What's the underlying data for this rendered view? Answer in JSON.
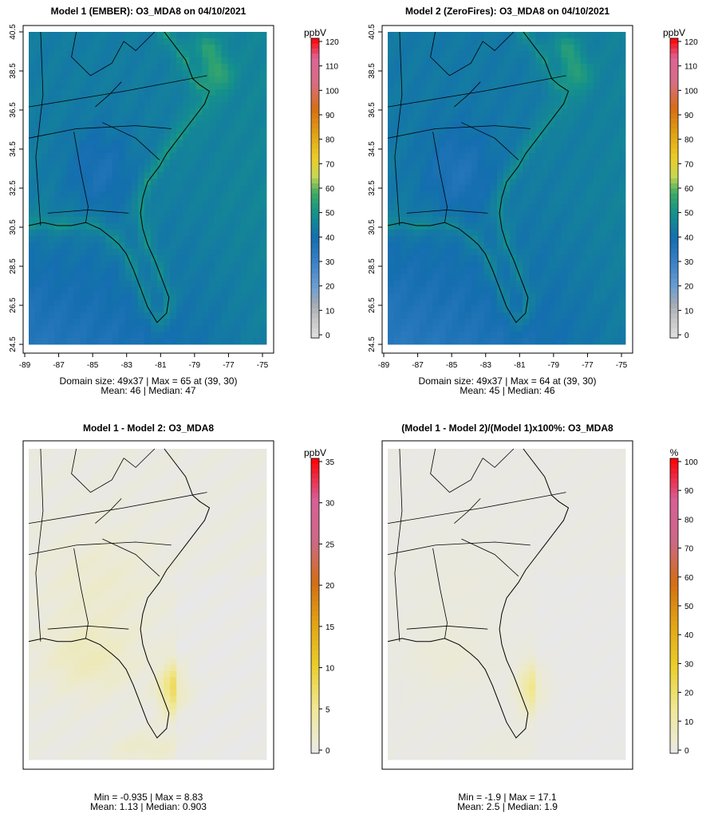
{
  "figure_title": "Four-panel O3_MDA8 comparison, 04/10/2021",
  "chart_data": [
    {
      "id": "p1",
      "type": "heatmap",
      "title": "Model 1 (EMBER): O3_MDA8 on 04/10/2021",
      "unit": "ppbV",
      "colorbar": {
        "min": 0,
        "max": 120,
        "ticks": [
          0,
          10,
          20,
          30,
          40,
          50,
          60,
          70,
          80,
          90,
          100,
          110,
          120
        ],
        "palette": "ozone"
      },
      "x_ticks": [
        "-89",
        "-87",
        "-85",
        "-83",
        "-81",
        "-79",
        "-77",
        "-75"
      ],
      "y_ticks": [
        "24.5",
        "26.5",
        "28.5",
        "30.5",
        "32.5",
        "34.5",
        "36.5",
        "38.5",
        "40.5"
      ],
      "x_range": [
        -89,
        -75
      ],
      "y_range": [
        24.5,
        40.5
      ],
      "stats_line1": "Domain size: 49x37 | Max = 65 at (39, 30)",
      "stats_line2": "Mean: 46 |  Median: 47",
      "field": {
        "base": 44,
        "sw": 28,
        "coastal_boost": 8,
        "hotspot_value": 65
      }
    },
    {
      "id": "p2",
      "type": "heatmap",
      "title": "Model 2 (ZeroFires): O3_MDA8 on 04/10/2021",
      "unit": "ppbV",
      "colorbar": {
        "min": 0,
        "max": 120,
        "ticks": [
          0,
          10,
          20,
          30,
          40,
          50,
          60,
          70,
          80,
          90,
          100,
          110,
          120
        ],
        "palette": "ozone"
      },
      "x_ticks": [
        "-89",
        "-87",
        "-85",
        "-83",
        "-81",
        "-79",
        "-77",
        "-75"
      ],
      "y_ticks": [
        "24.5",
        "26.5",
        "28.5",
        "30.5",
        "32.5",
        "34.5",
        "36.5",
        "38.5",
        "40.5"
      ],
      "x_range": [
        -89,
        -75
      ],
      "y_range": [
        24.5,
        40.5
      ],
      "stats_line1": "Domain size: 49x37 | Max = 64 at (39, 30)",
      "stats_line2": "Mean: 45 |  Median: 46",
      "field": {
        "base": 43,
        "sw": 27,
        "coastal_boost": 7,
        "hotspot_value": 64
      }
    },
    {
      "id": "p3",
      "type": "heatmap",
      "title": "Model 1 - Model 2: O3_MDA8",
      "unit": "ppbV",
      "colorbar": {
        "min": 0,
        "max": 35,
        "ticks": [
          0,
          5,
          10,
          15,
          20,
          25,
          30,
          35
        ],
        "palette": "diff"
      },
      "stats_line1": "Min = -0.935 | Max = 8.83",
      "stats_line2": "Mean: 1.13 |  Median: 0.903",
      "field": {
        "base": 0.8,
        "florida": 8.83,
        "min": -0.935
      }
    },
    {
      "id": "p4",
      "type": "heatmap",
      "title": "(Model 1 - Model 2)/(Model 1)x100%: O3_MDA8",
      "unit": "%",
      "colorbar": {
        "min": 0,
        "max": 100,
        "ticks": [
          0,
          10,
          20,
          30,
          40,
          50,
          60,
          70,
          80,
          90,
          100
        ],
        "palette": "diff"
      },
      "stats_line1": "Min = -1.9 | Max = 17.1",
      "stats_line2": "Mean: 2.5 |  Median: 1.9",
      "field": {
        "base": 1.5,
        "florida": 17.1,
        "min": -1.9
      }
    }
  ]
}
